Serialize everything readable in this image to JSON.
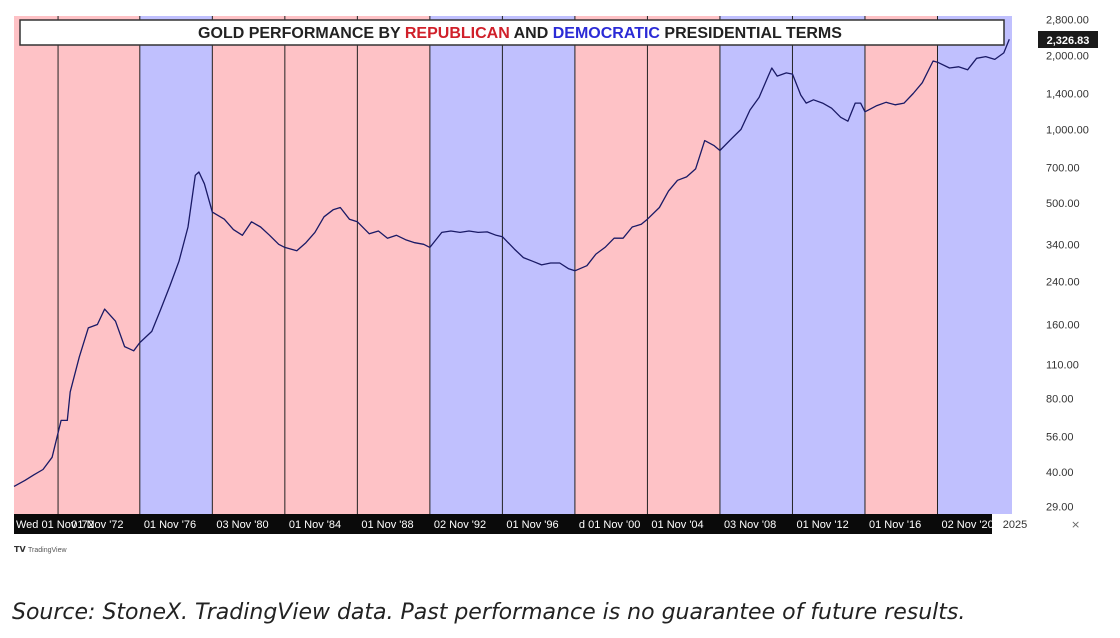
{
  "chart_data": {
    "type": "line",
    "title_parts": [
      {
        "text": "GOLD PERFORMANCE BY ",
        "color": "#222222"
      },
      {
        "text": "REPUBLICAN",
        "color": "#d0202a"
      },
      {
        "text": " AND ",
        "color": "#222222"
      },
      {
        "text": "DEMOCRATIC",
        "color": "#2b2bd6"
      },
      {
        "text": " PRESIDENTIAL TERMS",
        "color": "#222222"
      }
    ],
    "y_scale": "log",
    "y_ticks": [
      "2,800.00",
      "2,000.00",
      "1,400.00",
      "1,000.00",
      "700.00",
      "500.00",
      "340.00",
      "240.00",
      "160.00",
      "110.00",
      "80.00",
      "56.00",
      "40.00",
      "29.00"
    ],
    "y_tick_values": [
      2800,
      2000,
      1400,
      1000,
      700,
      500,
      340,
      240,
      160,
      110,
      80,
      56,
      40,
      29
    ],
    "ylim": [
      27,
      2900
    ],
    "last_value_label": "2,326.83",
    "xlim": [
      1969.9,
      2024.95
    ],
    "x_end_label": "2025",
    "x_tick_labels": [
      {
        "year": 1969.9,
        "text": "Wed 01 Nov '72"
      },
      {
        "year": 1972.84,
        "text": "01 Nov '72"
      },
      {
        "year": 1976.84,
        "text": "01 Nov '76"
      },
      {
        "year": 1980.84,
        "text": "03 Nov '80"
      },
      {
        "year": 1984.84,
        "text": "01 Nov '84"
      },
      {
        "year": 1988.84,
        "text": "01 Nov '88"
      },
      {
        "year": 1992.84,
        "text": "02 Nov '92"
      },
      {
        "year": 1996.84,
        "text": "01 Nov '96"
      },
      {
        "year": 2000.84,
        "text": "d 01 Nov '00"
      },
      {
        "year": 2004.84,
        "text": "01 Nov '04"
      },
      {
        "year": 2008.84,
        "text": "03 Nov '08"
      },
      {
        "year": 2012.84,
        "text": "01 Nov '12"
      },
      {
        "year": 2016.84,
        "text": "01 Nov '16"
      },
      {
        "year": 2020.84,
        "text": "02 Nov '20"
      }
    ],
    "terms": [
      {
        "party": "R",
        "start": 1969.9,
        "end": 1976.84
      },
      {
        "party": "D",
        "start": 1976.84,
        "end": 1980.84
      },
      {
        "party": "R",
        "start": 1980.84,
        "end": 1992.84
      },
      {
        "party": "D",
        "start": 1992.84,
        "end": 2000.84
      },
      {
        "party": "R",
        "start": 2000.84,
        "end": 2008.84
      },
      {
        "party": "D",
        "start": 2008.84,
        "end": 2016.84
      },
      {
        "party": "R",
        "start": 2016.84,
        "end": 2020.84
      },
      {
        "party": "D",
        "start": 2020.84,
        "end": 2024.95
      }
    ],
    "election_lines": [
      1972.33,
      1976.84,
      1980.84,
      1984.84,
      1988.84,
      1992.84,
      1996.84,
      2000.84,
      2004.84,
      2008.84,
      2012.84,
      2016.84,
      2020.84
    ],
    "series": [
      {
        "x": [
          1969.9,
          1970.5,
          1971.0,
          1971.5,
          1972.0,
          1972.5,
          1972.84,
          1973.0,
          1973.5,
          1974.0,
          1974.5,
          1974.9,
          1975.5,
          1976.0,
          1976.5,
          1976.84,
          1977.5,
          1978.0,
          1978.5,
          1979.0,
          1979.5,
          1979.9,
          1980.1,
          1980.4,
          1980.84,
          1981.5,
          1982.0,
          1982.5,
          1983.0,
          1983.5,
          1984.0,
          1984.5,
          1984.84,
          1985.5,
          1986.0,
          1986.5,
          1987.0,
          1987.5,
          1987.9,
          1988.4,
          1988.84,
          1989.5,
          1990.0,
          1990.5,
          1991.0,
          1991.5,
          1992.0,
          1992.5,
          1992.84,
          1993.5,
          1994.0,
          1994.5,
          1995.0,
          1995.5,
          1996.0,
          1996.5,
          1996.84,
          1997.5,
          1998.0,
          1998.5,
          1999.0,
          1999.5,
          2000.0,
          2000.5,
          2000.84,
          2001.5,
          2002.0,
          2002.5,
          2003.0,
          2003.5,
          2004.0,
          2004.5,
          2004.84,
          2005.5,
          2006.0,
          2006.5,
          2007.0,
          2007.5,
          2008.0,
          2008.5,
          2008.84,
          2009.5,
          2010.0,
          2010.5,
          2011.0,
          2011.5,
          2011.7,
          2012.0,
          2012.5,
          2012.84,
          2013.3,
          2013.6,
          2014.0,
          2014.5,
          2015.0,
          2015.5,
          2015.9,
          2016.3,
          2016.6,
          2016.84,
          2017.5,
          2018.0,
          2018.5,
          2019.0,
          2019.5,
          2020.0,
          2020.6,
          2020.84,
          2021.5,
          2022.0,
          2022.5,
          2023.0,
          2023.5,
          2024.0,
          2024.5,
          2024.8
        ],
        "y": [
          35,
          37,
          39,
          41,
          46,
          65,
          65,
          85,
          118,
          155,
          160,
          185,
          165,
          130,
          125,
          135,
          150,
          185,
          230,
          290,
          400,
          650,
          670,
          600,
          460,
          430,
          390,
          370,
          420,
          400,
          370,
          340,
          330,
          320,
          345,
          380,
          440,
          470,
          480,
          430,
          420,
          375,
          385,
          360,
          370,
          355,
          345,
          340,
          330,
          380,
          385,
          380,
          385,
          380,
          382,
          370,
          365,
          325,
          300,
          290,
          280,
          285,
          285,
          270,
          265,
          278,
          310,
          330,
          360,
          360,
          400,
          410,
          430,
          480,
          560,
          620,
          640,
          690,
          900,
          860,
          820,
          920,
          1000,
          1200,
          1350,
          1650,
          1780,
          1650,
          1700,
          1680,
          1380,
          1280,
          1320,
          1280,
          1220,
          1120,
          1080,
          1280,
          1280,
          1180,
          1250,
          1290,
          1260,
          1280,
          1400,
          1550,
          1900,
          1880,
          1780,
          1800,
          1750,
          1950,
          1980,
          1930,
          2050,
          2330
        ]
      }
    ]
  },
  "caption": "Source: StoneX. TradingView data. Past performance is no guarantee of future results.",
  "watermark": "TradingView",
  "colors": {
    "republican_band": "#fec2c6",
    "democratic_band": "#c0c0fe",
    "line": "#1a1a66",
    "axis_bar": "#0a0a0a"
  }
}
